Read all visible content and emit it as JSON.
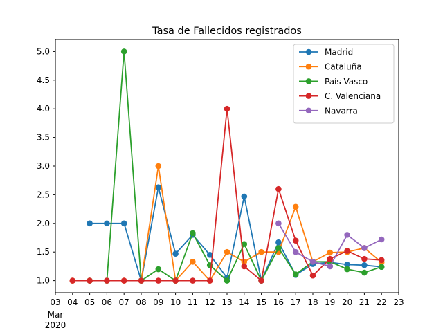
{
  "chart_data": {
    "type": "line",
    "title": "Tasa de Fallecidos registrados",
    "xlabel": "",
    "ylabel": "",
    "x_ticks": [
      "03",
      "04",
      "05",
      "06",
      "07",
      "08",
      "09",
      "10",
      "11",
      "12",
      "13",
      "14",
      "15",
      "16",
      "17",
      "18",
      "19",
      "20",
      "21",
      "22",
      "23"
    ],
    "x_tick_secondary": [
      "Mar",
      "2020"
    ],
    "x_domain": [
      3,
      23
    ],
    "y_ticks": [
      "1.0",
      "1.5",
      "2.0",
      "2.5",
      "3.0",
      "3.5",
      "4.0",
      "4.5",
      "5.0"
    ],
    "ylim": [
      0.79,
      5.21
    ],
    "legend_position": "top-right",
    "series": [
      {
        "name": "Madrid",
        "color": "#1f77b4",
        "points": [
          [
            5,
            2.0
          ],
          [
            6,
            2.0
          ],
          [
            7,
            2.0
          ],
          [
            8,
            1.0
          ],
          [
            9,
            2.63
          ],
          [
            10,
            1.47
          ],
          [
            11,
            1.8
          ],
          [
            12,
            1.45
          ],
          [
            13,
            1.05
          ],
          [
            14,
            2.47
          ],
          [
            15,
            1.0
          ],
          [
            16,
            1.67
          ],
          [
            17,
            1.1
          ],
          [
            18,
            1.29
          ],
          [
            19,
            1.32
          ],
          [
            20,
            1.28
          ],
          [
            21,
            1.27
          ],
          [
            22,
            1.24
          ]
        ]
      },
      {
        "name": "Cataluña",
        "color": "#ff7f0e",
        "points": [
          [
            4,
            1.0
          ],
          [
            5,
            1.0
          ],
          [
            6,
            1.0
          ],
          [
            7,
            1.0
          ],
          [
            8,
            1.0
          ],
          [
            9,
            3.0
          ],
          [
            10,
            1.0
          ],
          [
            11,
            1.33
          ],
          [
            12,
            1.0
          ],
          [
            13,
            1.5
          ],
          [
            14,
            1.33
          ],
          [
            15,
            1.5
          ],
          [
            16,
            1.5
          ],
          [
            17,
            2.29
          ],
          [
            18,
            1.33
          ],
          [
            19,
            1.49
          ],
          [
            20,
            1.5
          ],
          [
            21,
            1.57
          ],
          [
            22,
            1.32
          ]
        ]
      },
      {
        "name": "País Vasco",
        "color": "#2ca02c",
        "points": [
          [
            5,
            1.0
          ],
          [
            6,
            1.0
          ],
          [
            7,
            5.0
          ],
          [
            8,
            1.0
          ],
          [
            9,
            1.2
          ],
          [
            10,
            1.0
          ],
          [
            11,
            1.83
          ],
          [
            12,
            1.27
          ],
          [
            13,
            1.0
          ],
          [
            14,
            1.64
          ],
          [
            15,
            1.0
          ],
          [
            16,
            1.57
          ],
          [
            17,
            1.11
          ],
          [
            18,
            1.33
          ],
          [
            19,
            1.33
          ],
          [
            20,
            1.2
          ],
          [
            21,
            1.14
          ],
          [
            22,
            1.24
          ]
        ]
      },
      {
        "name": "C. Valenciana",
        "color": "#d62728",
        "points": [
          [
            4,
            1.0
          ],
          [
            5,
            1.0
          ],
          [
            6,
            1.0
          ],
          [
            7,
            1.0
          ],
          [
            8,
            1.0
          ],
          [
            9,
            1.0
          ],
          [
            10,
            1.0
          ],
          [
            11,
            1.0
          ],
          [
            12,
            1.0
          ],
          [
            13,
            4.0
          ],
          [
            14,
            1.25
          ],
          [
            15,
            1.0
          ],
          [
            16,
            2.6
          ],
          [
            17,
            1.7
          ],
          [
            18,
            1.09
          ],
          [
            19,
            1.38
          ],
          [
            20,
            1.52
          ],
          [
            21,
            1.38
          ],
          [
            22,
            1.36
          ]
        ]
      },
      {
        "name": "Navarra",
        "color": "#9467bd",
        "points": [
          [
            16,
            2.0
          ],
          [
            17,
            1.5
          ],
          [
            18,
            1.33
          ],
          [
            19,
            1.25
          ],
          [
            20,
            1.8
          ],
          [
            21,
            1.57
          ],
          [
            22,
            1.72
          ]
        ]
      }
    ]
  }
}
